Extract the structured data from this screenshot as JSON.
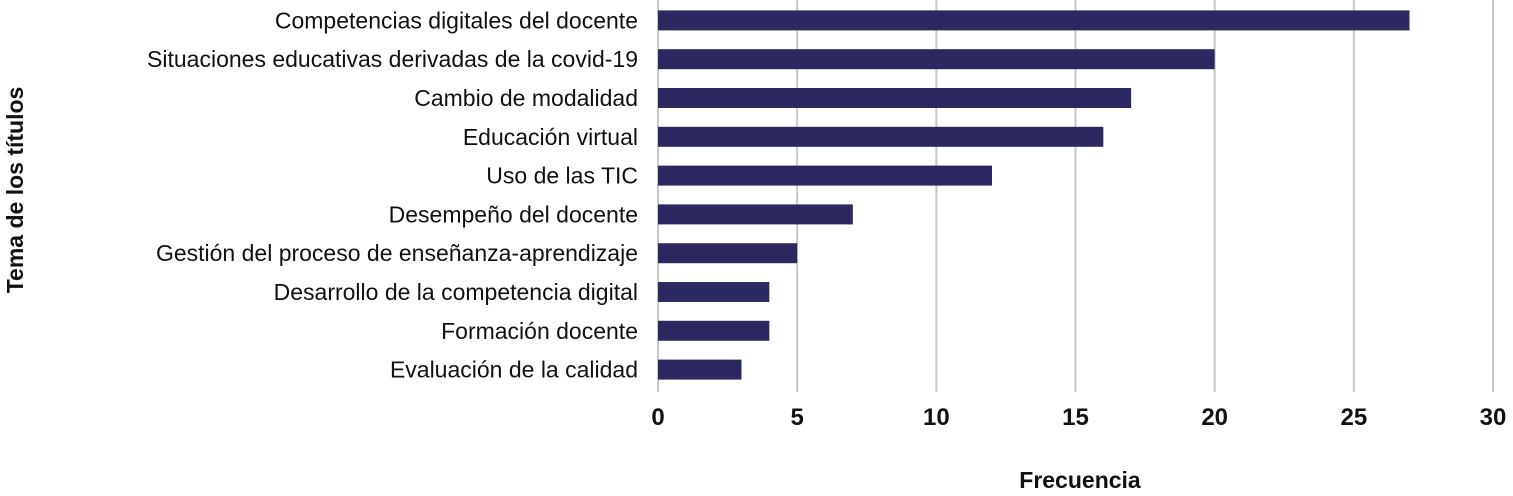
{
  "chart_data": {
    "type": "bar",
    "orientation": "horizontal",
    "title": "",
    "xlabel": "Frecuencia",
    "ylabel": "Tema de los títulos",
    "categories": [
      "Competencias digitales del docente",
      "Situaciones educativas derivadas de la covid-19",
      "Cambio de modalidad",
      "Educación virtual",
      "Uso de las TIC",
      "Desempeño del docente",
      "Gestión del proceso de enseñanza-aprendizaje",
      "Desarrollo de la competencia digital",
      "Formación docente",
      "Evaluación de la calidad"
    ],
    "values": [
      27,
      20,
      17,
      16,
      12,
      7,
      5,
      4,
      4,
      3
    ],
    "xlim": [
      0,
      30
    ],
    "xticks": [
      "0",
      "5",
      "10",
      "15",
      "20",
      "25",
      "30"
    ],
    "grid": "vertical",
    "bar_color": "#2b2862",
    "grid_color": "#c8c8c8"
  }
}
